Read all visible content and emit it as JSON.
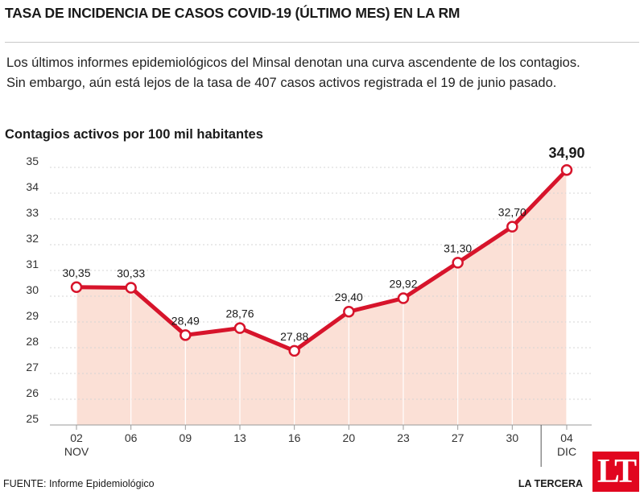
{
  "header": {
    "title": "TASA DE INCIDENCIA DE CASOS COVID-19 (ÚLTIMO MES) EN LA RM",
    "description": "Los últimos informes epidemiológicos del Minsal denotan una curva ascendente de los contagios. Sin embargo, aún está lejos de la tasa de 407 casos activos registrada el 19 de junio pasado.",
    "subtitle": "Contagios activos por 100 mil habitantes"
  },
  "footer": {
    "source": "FUENTE: Informe Epidemiológico",
    "brand": "LA TERCERA",
    "logo": "LT"
  },
  "chart_data": {
    "type": "line",
    "categories": [
      "02",
      "06",
      "09",
      "13",
      "16",
      "20",
      "23",
      "27",
      "30",
      "04"
    ],
    "month_labels": [
      "NOV",
      "",
      "",
      "",
      "",
      "",
      "",
      "",
      "",
      "DIC"
    ],
    "values": [
      30.35,
      30.33,
      28.49,
      28.76,
      27.88,
      29.4,
      29.92,
      31.3,
      32.7,
      34.9
    ],
    "value_labels": [
      "30,35",
      "30,33",
      "28,49",
      "28,76",
      "27,88",
      "29,40",
      "29,92",
      "31,30",
      "32,70",
      "34,90"
    ],
    "ylim": [
      25,
      35
    ],
    "yticks": [
      25,
      26,
      27,
      28,
      29,
      30,
      31,
      32,
      33,
      34,
      35
    ],
    "grid": true,
    "colors": {
      "line": "#d7142b",
      "area": "#fbe0d6",
      "grid": "#d4d4d4",
      "marker_fill": "#ffffff"
    }
  }
}
